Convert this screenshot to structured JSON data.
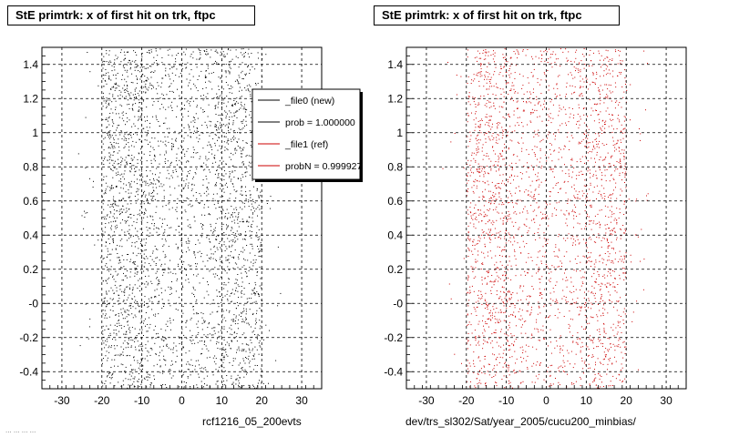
{
  "panels": [
    {
      "title": "StE primtrk: x of first hit on trk, ftpc",
      "xlabel": "rcf1216_05_200evts",
      "marker_color": "#000000",
      "legend": {
        "entries": [
          {
            "label": "_file0 (new)",
            "color": "#000000"
          },
          {
            "label": "prob = 1.000000",
            "color": "#000000"
          },
          {
            "label": "_file1 (ref)",
            "color": "#cc0000"
          },
          {
            "label": "probN = 0.999927",
            "color": "#cc0000"
          }
        ]
      }
    },
    {
      "title": "StE primtrk: x of first hit on trk, ftpc",
      "xlabel": "dev/trs_sl302/Sat/year_2005/cucu200_minbias/",
      "marker_color": "#cc0000"
    }
  ],
  "footer_stamp": "... ... ... ...",
  "chart_data": [
    {
      "type": "scatter",
      "title": "StE primtrk: x of first hit on trk, ftpc",
      "xlabel": "rcf1216_05_200evts",
      "ylabel": "",
      "xlim": [
        -35,
        35
      ],
      "ylim": [
        -0.5,
        1.5
      ],
      "xticks": [
        -30,
        -20,
        -10,
        0,
        10,
        20,
        30
      ],
      "yticks": [
        -0.4,
        -0.2,
        0,
        0.2,
        0.4,
        0.6,
        0.8,
        1,
        1.2,
        1.4
      ],
      "ytick_labels": [
        "-0.4",
        "-0.2",
        "-0",
        "0.2",
        "0.4",
        "0.6",
        "0.8",
        "1",
        "1.2",
        "1.4"
      ],
      "grid": true,
      "legend_position": "top-right",
      "series": [
        {
          "name": "_file0 (new)",
          "color": "#000000"
        }
      ],
      "bands": [
        {
          "x_range": [
            -20,
            -8
          ],
          "weight": 1.0
        },
        {
          "x_range": [
            -8,
            8
          ],
          "weight": 0.8
        },
        {
          "x_range": [
            8,
            20
          ],
          "weight": 0.9
        }
      ],
      "point_count": 3200
    },
    {
      "type": "scatter",
      "title": "StE primtrk: x of first hit on trk, ftpc",
      "xlabel": "dev/trs_sl302/Sat/year_2005/cucu200_minbias/",
      "ylabel": "",
      "xlim": [
        -35,
        35
      ],
      "ylim": [
        -0.5,
        1.5
      ],
      "xticks": [
        -30,
        -20,
        -10,
        0,
        10,
        20,
        30
      ],
      "yticks": [
        -0.4,
        -0.2,
        0,
        0.2,
        0.4,
        0.6,
        0.8,
        1,
        1.2,
        1.4
      ],
      "ytick_labels": [
        "-0.4",
        "-0.2",
        "-0",
        "0.2",
        "0.4",
        "0.6",
        "0.8",
        "1",
        "1.2",
        "1.4"
      ],
      "grid": true,
      "series": [
        {
          "name": "_file1 (ref)",
          "color": "#cc0000"
        }
      ],
      "bands": [
        {
          "x_range": [
            -20,
            -8
          ],
          "weight": 1.0
        },
        {
          "x_range": [
            -8,
            8
          ],
          "weight": 0.8
        },
        {
          "x_range": [
            8,
            20
          ],
          "weight": 0.9
        }
      ],
      "point_count": 2700
    }
  ]
}
